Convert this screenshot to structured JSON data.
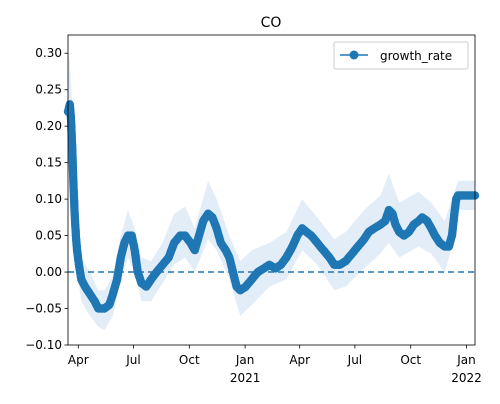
{
  "chart_data": {
    "type": "line",
    "title": "CO",
    "xlabel": "",
    "ylabel": "",
    "x_range": [
      "2020-03-15",
      "2022-01-15"
    ],
    "ylim": [
      -0.1,
      0.325
    ],
    "y_ticks": [
      -0.1,
      -0.05,
      0.0,
      0.05,
      0.1,
      0.15,
      0.2,
      0.25,
      0.3
    ],
    "y_tick_labels": [
      "−0.10",
      "−0.05",
      "0.00",
      "0.05",
      "0.10",
      "0.15",
      "0.20",
      "0.25",
      "0.30"
    ],
    "x_ticks": [
      {
        "date": "2020-04-01",
        "label": "Apr",
        "sub": ""
      },
      {
        "date": "2020-07-01",
        "label": "Jul",
        "sub": ""
      },
      {
        "date": "2020-10-01",
        "label": "Oct",
        "sub": ""
      },
      {
        "date": "2021-01-01",
        "label": "Jan",
        "sub": "2021"
      },
      {
        "date": "2021-04-01",
        "label": "Apr",
        "sub": ""
      },
      {
        "date": "2021-07-01",
        "label": "Jul",
        "sub": ""
      },
      {
        "date": "2021-10-01",
        "label": "Oct",
        "sub": ""
      },
      {
        "date": "2022-01-01",
        "label": "Jan",
        "sub": "2022"
      }
    ],
    "grid": false,
    "legend_position": "top-right",
    "reference_line": {
      "y": 0,
      "style": "dashed"
    },
    "colors": {
      "series": "#1f77b4",
      "band": "#dce9f6"
    },
    "series": [
      {
        "name": "growth_rate",
        "points": [
          [
            "2020-03-15",
            0.22
          ],
          [
            "2020-03-18",
            0.23
          ],
          [
            "2020-03-20",
            0.21
          ],
          [
            "2020-03-22",
            0.17
          ],
          [
            "2020-03-24",
            0.12
          ],
          [
            "2020-03-26",
            0.08
          ],
          [
            "2020-03-28",
            0.05
          ],
          [
            "2020-03-30",
            0.03
          ],
          [
            "2020-04-02",
            0.01
          ],
          [
            "2020-04-06",
            -0.01
          ],
          [
            "2020-04-12",
            -0.02
          ],
          [
            "2020-04-20",
            -0.03
          ],
          [
            "2020-04-28",
            -0.04
          ],
          [
            "2020-05-04",
            -0.05
          ],
          [
            "2020-05-14",
            -0.05
          ],
          [
            "2020-05-22",
            -0.045
          ],
          [
            "2020-05-28",
            -0.03
          ],
          [
            "2020-06-04",
            -0.01
          ],
          [
            "2020-06-10",
            0.02
          ],
          [
            "2020-06-16",
            0.04
          ],
          [
            "2020-06-22",
            0.05
          ],
          [
            "2020-06-28",
            0.05
          ],
          [
            "2020-07-03",
            0.03
          ],
          [
            "2020-07-08",
            0.0
          ],
          [
            "2020-07-14",
            -0.015
          ],
          [
            "2020-07-22",
            -0.02
          ],
          [
            "2020-07-30",
            -0.01
          ],
          [
            "2020-08-08",
            0.0
          ],
          [
            "2020-08-18",
            0.01
          ],
          [
            "2020-08-28",
            0.02
          ],
          [
            "2020-09-06",
            0.04
          ],
          [
            "2020-09-16",
            0.05
          ],
          [
            "2020-09-24",
            0.05
          ],
          [
            "2020-10-03",
            0.04
          ],
          [
            "2020-10-10",
            0.03
          ],
          [
            "2020-10-17",
            0.05
          ],
          [
            "2020-10-24",
            0.07
          ],
          [
            "2020-11-01",
            0.08
          ],
          [
            "2020-11-08",
            0.075
          ],
          [
            "2020-11-15",
            0.06
          ],
          [
            "2020-11-22",
            0.04
          ],
          [
            "2020-11-30",
            0.03
          ],
          [
            "2020-12-06",
            0.02
          ],
          [
            "2020-12-12",
            0.0
          ],
          [
            "2020-12-18",
            -0.02
          ],
          [
            "2020-12-24",
            -0.025
          ],
          [
            "2021-01-02",
            -0.02
          ],
          [
            "2021-01-12",
            -0.01
          ],
          [
            "2021-01-22",
            0.0
          ],
          [
            "2021-02-01",
            0.005
          ],
          [
            "2021-02-10",
            0.01
          ],
          [
            "2021-02-20",
            0.005
          ],
          [
            "2021-03-01",
            0.01
          ],
          [
            "2021-03-10",
            0.02
          ],
          [
            "2021-03-20",
            0.035
          ],
          [
            "2021-03-28",
            0.05
          ],
          [
            "2021-04-05",
            0.06
          ],
          [
            "2021-04-12",
            0.055
          ],
          [
            "2021-04-20",
            0.05
          ],
          [
            "2021-04-30",
            0.04
          ],
          [
            "2021-05-10",
            0.03
          ],
          [
            "2021-05-20",
            0.02
          ],
          [
            "2021-05-28",
            0.01
          ],
          [
            "2021-06-06",
            0.01
          ],
          [
            "2021-06-16",
            0.015
          ],
          [
            "2021-06-26",
            0.025
          ],
          [
            "2021-07-06",
            0.035
          ],
          [
            "2021-07-16",
            0.045
          ],
          [
            "2021-07-24",
            0.055
          ],
          [
            "2021-08-02",
            0.06
          ],
          [
            "2021-08-12",
            0.065
          ],
          [
            "2021-08-20",
            0.07
          ],
          [
            "2021-08-26",
            0.085
          ],
          [
            "2021-09-01",
            0.08
          ],
          [
            "2021-09-06",
            0.065
          ],
          [
            "2021-09-12",
            0.055
          ],
          [
            "2021-09-20",
            0.05
          ],
          [
            "2021-09-28",
            0.055
          ],
          [
            "2021-10-06",
            0.065
          ],
          [
            "2021-10-14",
            0.07
          ],
          [
            "2021-10-20",
            0.075
          ],
          [
            "2021-10-28",
            0.07
          ],
          [
            "2021-11-04",
            0.06
          ],
          [
            "2021-11-10",
            0.05
          ],
          [
            "2021-11-18",
            0.04
          ],
          [
            "2021-11-26",
            0.035
          ],
          [
            "2021-12-03",
            0.035
          ],
          [
            "2021-12-08",
            0.05
          ],
          [
            "2021-12-12",
            0.08
          ],
          [
            "2021-12-15",
            0.1
          ],
          [
            "2021-12-18",
            0.105
          ],
          [
            "2021-12-26",
            0.105
          ],
          [
            "2022-01-03",
            0.105
          ],
          [
            "2022-01-15",
            0.105
          ]
        ]
      }
    ],
    "confidence_band": [
      [
        "2020-03-15",
        0.17,
        0.3
      ],
      [
        "2020-03-18",
        0.18,
        0.29
      ],
      [
        "2020-03-22",
        0.12,
        0.23
      ],
      [
        "2020-03-26",
        0.05,
        0.15
      ],
      [
        "2020-03-30",
        0.0,
        0.07
      ],
      [
        "2020-04-06",
        -0.04,
        0.02
      ],
      [
        "2020-04-20",
        -0.06,
        0.0
      ],
      [
        "2020-05-04",
        -0.075,
        -0.025
      ],
      [
        "2020-05-14",
        -0.08,
        -0.025
      ],
      [
        "2020-05-28",
        -0.06,
        -0.005
      ],
      [
        "2020-06-10",
        -0.01,
        0.05
      ],
      [
        "2020-06-22",
        0.02,
        0.085
      ],
      [
        "2020-07-03",
        0.0,
        0.06
      ],
      [
        "2020-07-14",
        -0.04,
        0.02
      ],
      [
        "2020-07-30",
        -0.04,
        0.015
      ],
      [
        "2020-08-18",
        -0.015,
        0.04
      ],
      [
        "2020-09-06",
        0.01,
        0.08
      ],
      [
        "2020-09-24",
        0.02,
        0.09
      ],
      [
        "2020-10-10",
        0.0,
        0.06
      ],
      [
        "2020-11-01",
        0.045,
        0.125
      ],
      [
        "2020-11-15",
        0.03,
        0.1
      ],
      [
        "2020-12-06",
        -0.01,
        0.05
      ],
      [
        "2020-12-24",
        -0.06,
        0.015
      ],
      [
        "2021-01-12",
        -0.045,
        0.03
      ],
      [
        "2021-02-10",
        -0.02,
        0.04
      ],
      [
        "2021-03-10",
        -0.01,
        0.055
      ],
      [
        "2021-04-05",
        0.03,
        0.1
      ],
      [
        "2021-04-30",
        0.01,
        0.075
      ],
      [
        "2021-05-28",
        -0.025,
        0.045
      ],
      [
        "2021-06-16",
        -0.02,
        0.055
      ],
      [
        "2021-07-16",
        0.005,
        0.085
      ],
      [
        "2021-08-12",
        0.025,
        0.105
      ],
      [
        "2021-08-26",
        0.04,
        0.135
      ],
      [
        "2021-09-12",
        0.02,
        0.095
      ],
      [
        "2021-10-14",
        0.035,
        0.11
      ],
      [
        "2021-11-04",
        0.025,
        0.095
      ],
      [
        "2021-11-26",
        0.0,
        0.07
      ],
      [
        "2021-12-12",
        0.045,
        0.11
      ],
      [
        "2021-12-18",
        0.085,
        0.125
      ],
      [
        "2022-01-15",
        0.085,
        0.125
      ]
    ]
  }
}
